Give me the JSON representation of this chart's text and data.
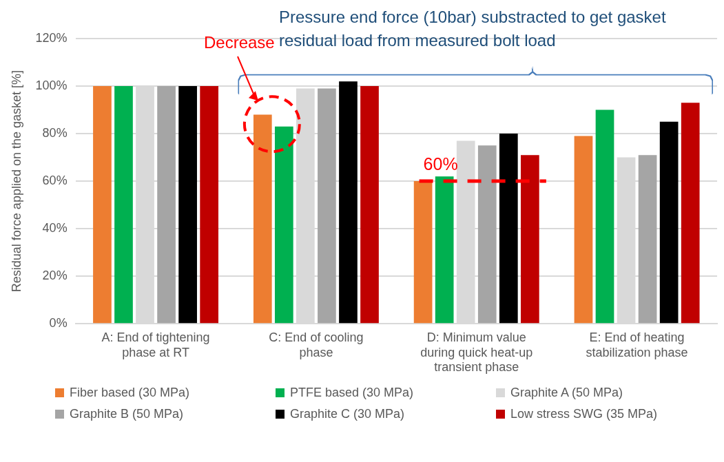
{
  "chart_data": {
    "type": "bar",
    "ylabel": "Residual force applied on the gasket [%]",
    "categories": [
      "A: End of tightening phase at RT",
      "C: End of cooling phase",
      "D: Minimum value during quick heat-up transient phase",
      "E: End of heating stabilization phase"
    ],
    "series": [
      {
        "name": "Fiber based (30 MPa)",
        "color": "#ed7d31",
        "values": [
          100,
          88,
          60,
          79
        ]
      },
      {
        "name": "PTFE based (30 MPa)",
        "color": "#00b050",
        "values": [
          100,
          83,
          62,
          90
        ]
      },
      {
        "name": "Graphite A (50 MPa)",
        "color": "#d9d9d9",
        "values": [
          100,
          99,
          77,
          70
        ]
      },
      {
        "name": "Graphite B (50 MPa)",
        "color": "#a5a5a5",
        "values": [
          100,
          99,
          75,
          71
        ]
      },
      {
        "name": "Graphite C (30 MPa)",
        "color": "#000000",
        "values": [
          100,
          102,
          80,
          85
        ]
      },
      {
        "name": "Low stress SWG (35 MPa)",
        "color": "#c00000",
        "values": [
          100,
          100,
          71,
          93
        ]
      }
    ],
    "ylim": [
      0,
      120
    ],
    "yticks": [
      {
        "value": 0,
        "label": "0%"
      },
      {
        "value": 20,
        "label": "20%"
      },
      {
        "value": 40,
        "label": "40%"
      },
      {
        "value": 60,
        "label": "60%"
      },
      {
        "value": 80,
        "label": "80%"
      },
      {
        "value": 100,
        "label": "100%"
      },
      {
        "value": 120,
        "label": "120%"
      }
    ],
    "grid": "y",
    "legend": "bottom",
    "ref_lines": [
      {
        "axis": "y",
        "value": 60,
        "label": "60%",
        "color": "#ff0000",
        "line_style": "dashed"
      }
    ],
    "annotations": [
      "Pressure end force (10bar) substracted to get gasket residual load from measured bolt load",
      "Decrease"
    ]
  }
}
